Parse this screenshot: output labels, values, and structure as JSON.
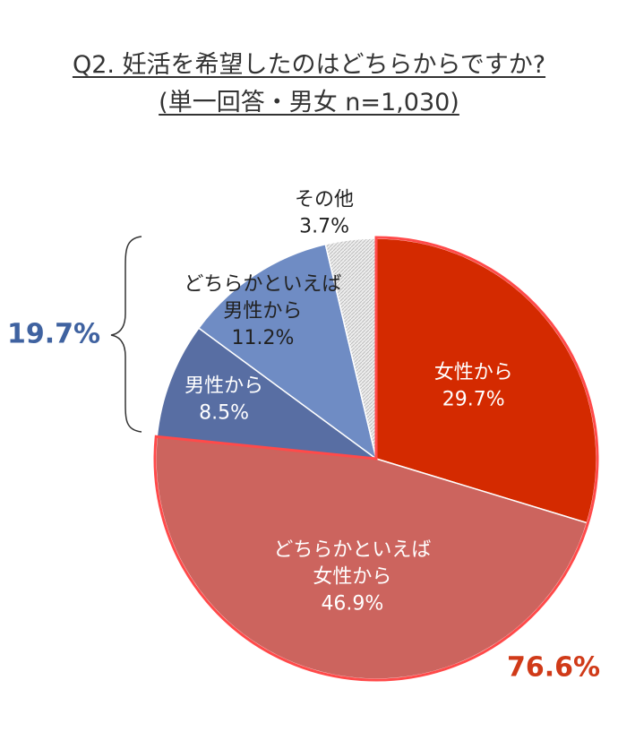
{
  "chart_data": {
    "type": "pie",
    "title": "Q2. 妊活を希望したのはどちらからですか?",
    "subtitle": "(単一回答・男女 n=1,030)",
    "slices": [
      {
        "label_lines": [
          "女性から"
        ],
        "value_text": "29.7%",
        "value": 29.7,
        "color": "#d42a00",
        "text_color": "#ffffff"
      },
      {
        "label_lines": [
          "どちらかといえば",
          "女性から"
        ],
        "value_text": "46.9%",
        "value": 46.9,
        "color": "#cc645e",
        "text_color": "#ffffff"
      },
      {
        "label_lines": [
          "男性から"
        ],
        "value_text": "8.5%",
        "value": 8.5,
        "color": "#586ea3",
        "text_color": "#ffffff"
      },
      {
        "label_lines": [
          "どちらかといえば",
          "男性から"
        ],
        "value_text": "11.2%",
        "value": 11.2,
        "color": "#6f8cc4",
        "text_color": "#222222"
      },
      {
        "label_lines": [
          "その他"
        ],
        "value_text": "3.7%",
        "value": 3.7,
        "color": "#e6e6e6",
        "text_color": "#222222",
        "pattern": "hatched"
      }
    ],
    "groups": [
      {
        "label": "76.6%",
        "color": "#d03a18",
        "slices": [
          0,
          1
        ]
      },
      {
        "label": "19.7%",
        "color": "#3f62a0",
        "slices": [
          2,
          3
        ]
      }
    ]
  }
}
